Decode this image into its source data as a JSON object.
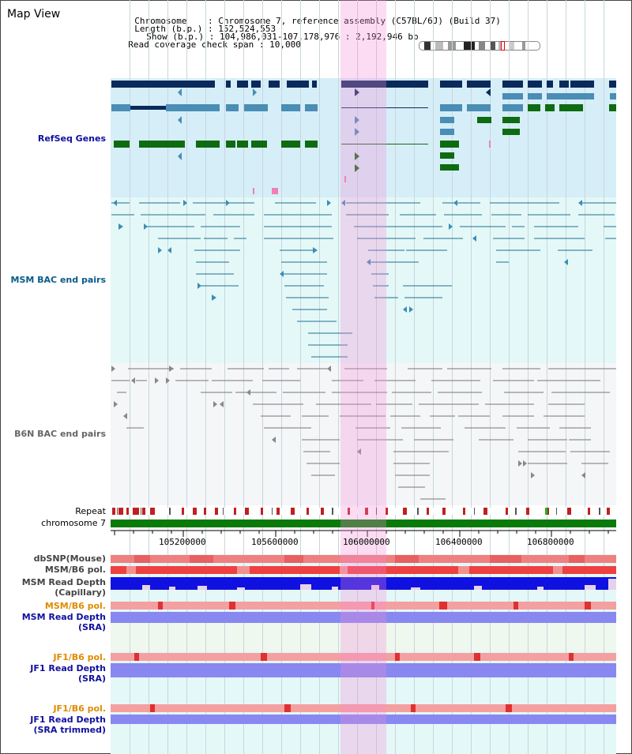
{
  "header": {
    "title": "Map View",
    "chromosome_label": "Chromosome",
    "chromosome_value": "Chromosome 7, reference assembly (C57BL/6J) (Build 37)",
    "length_label": "Length (b.p.)",
    "length_value": "152,524,553",
    "show_label": "Show (b.p.)",
    "show_value": "104,986,031-107,178,976 : 2,192,946 bp",
    "coverage_label": "Read coverage check span",
    "coverage_value": "10,000"
  },
  "tracks": {
    "refseq": "RefSeq Genes",
    "msm_bac": "MSM BAC end pairs",
    "b6n_bac": "B6N BAC end pairs",
    "repeat": "Repeat",
    "chromosome": "chromosome 7",
    "dbsnp": "dbSNP(Mouse)",
    "msm_b6_pol_1": "MSM/B6 pol.",
    "msm_depth_cap_1": "MSM Read Depth",
    "msm_depth_cap_2": "(Capillary)",
    "msm_b6_pol_2": "MSM/B6 pol.",
    "msm_depth_sra_1": "MSM Read Depth",
    "msm_depth_sra_2": "(SRA)",
    "jf1_b6_pol_1": "JF1/B6 pol.",
    "jf1_depth_sra_1": "JF1 Read Depth",
    "jf1_depth_sra_2": "(SRA)",
    "jf1_b6_pol_2": "JF1/B6 pol.",
    "jf1_depth_trim_1": "JF1 Read Depth",
    "jf1_depth_trim_2": "(SRA trimmed)"
  },
  "ruler": {
    "ticks": [
      "105200000",
      "105600000",
      "106000000",
      "106400000",
      "106800000"
    ]
  },
  "colors": {
    "refseq_bg": "#d6eef8",
    "msm_bg": "#e4f8f8",
    "b6n_bg": "#f4f6f8",
    "gene_dark": "#0b2a5c",
    "gene_mid": "#4a8db5",
    "gene_green": "#0f6b12",
    "msm_pair": "#1f6f91",
    "b6n_pair": "#777777",
    "chromosome": "#0a7a0a",
    "highlight": "#f58cd7",
    "label_blue": "#1010a0",
    "label_teal": "#0a5a8a",
    "label_orange": "#e08a00"
  }
}
